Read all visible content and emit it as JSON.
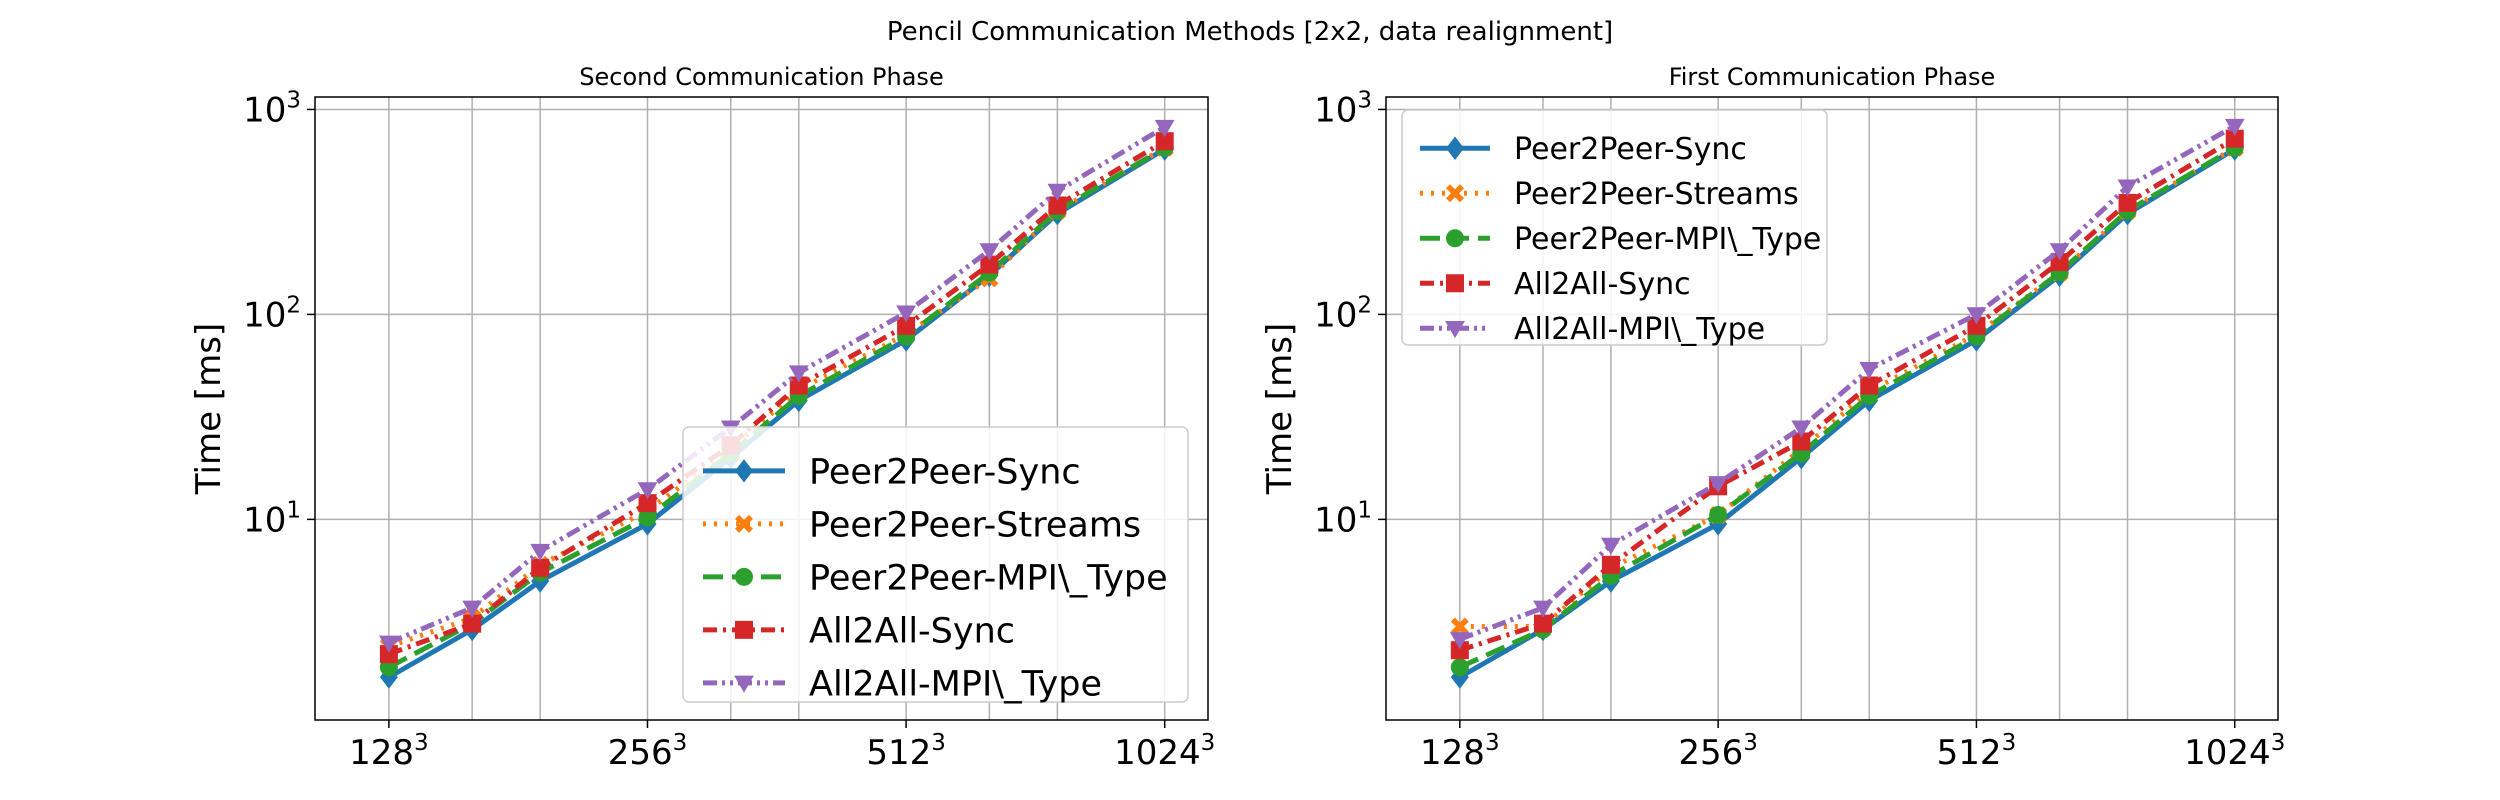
{
  "figure_title": "Pencil Communication Methods [2x2, data realignment]",
  "colors": {
    "Peer2Peer-Sync": "#1f77b4",
    "Peer2Peer-Streams": "#ff7f0e",
    "Peer2Peer-MPI\\_Type": "#2ca02c",
    "All2All-Sync": "#d62728",
    "All2All-MPI\\_Type": "#9467bd"
  },
  "chart_data": [
    {
      "type": "line",
      "title": "Second Communication Phase",
      "xlabel": "",
      "ylabel": "Time [ms]",
      "yscale": "log",
      "ylim": [
        1.05,
        1150
      ],
      "xlim": [
        105,
        1150
      ],
      "grid": true,
      "legend_position": "lower-right",
      "x": [
        128,
        160,
        192,
        256,
        320,
        384,
        512,
        640,
        768,
        1024
      ],
      "x_ticks": [
        {
          "value": 128,
          "base": "128",
          "exp": "3"
        },
        {
          "value": 256,
          "base": "256",
          "exp": "3"
        },
        {
          "value": 512,
          "base": "512",
          "exp": "3"
        },
        {
          "value": 1024,
          "base": "1024",
          "exp": "3"
        }
      ],
      "y_ticks": [
        {
          "value": 10,
          "base": "10",
          "exp": "1"
        },
        {
          "value": 100,
          "base": "10",
          "exp": "2"
        },
        {
          "value": 1000,
          "base": "10",
          "exp": "3"
        }
      ],
      "series": [
        {
          "name": "Peer2Peer-Sync",
          "values": [
            1.7,
            2.9,
            5.0,
            9.5,
            20,
            38,
            75,
            155,
            310,
            640
          ]
        },
        {
          "name": "Peer2Peer-Streams",
          "values": [
            2.4,
            3.3,
            6.0,
            11,
            22,
            43,
            80,
            150,
            320,
            650
          ]
        },
        {
          "name": "Peer2Peer-MPI\\_Type",
          "values": [
            1.9,
            3.1,
            5.5,
            10.2,
            21,
            40,
            78,
            160,
            320,
            650
          ]
        },
        {
          "name": "All2All-Sync",
          "values": [
            2.2,
            3.1,
            5.8,
            12,
            23,
            45,
            88,
            175,
            340,
            700
          ]
        },
        {
          "name": "All2All-MPI\\_Type",
          "values": [
            2.5,
            3.7,
            7.0,
            14,
            28,
            52,
            102,
            205,
            400,
            820
          ]
        }
      ]
    },
    {
      "type": "line",
      "title": "First Communication Phase",
      "xlabel": "",
      "ylabel": "Time [ms]",
      "yscale": "log",
      "ylim": [
        1.05,
        1150
      ],
      "xlim": [
        105,
        1150
      ],
      "grid": true,
      "legend_position": "upper-left",
      "x": [
        128,
        160,
        192,
        256,
        320,
        384,
        512,
        640,
        768,
        1024
      ],
      "x_ticks": [
        {
          "value": 128,
          "base": "128",
          "exp": "3"
        },
        {
          "value": 256,
          "base": "256",
          "exp": "3"
        },
        {
          "value": 512,
          "base": "512",
          "exp": "3"
        },
        {
          "value": 1024,
          "base": "1024",
          "exp": "3"
        }
      ],
      "y_ticks": [
        {
          "value": 10,
          "base": "10",
          "exp": "1"
        },
        {
          "value": 100,
          "base": "10",
          "exp": "2"
        },
        {
          "value": 1000,
          "base": "10",
          "exp": "3"
        }
      ],
      "series": [
        {
          "name": "Peer2Peer-Sync",
          "values": [
            1.7,
            2.9,
            5.0,
            9.5,
            20,
            38,
            75,
            155,
            310,
            640
          ]
        },
        {
          "name": "Peer2Peer-Streams",
          "values": [
            3.0,
            3.0,
            5.8,
            10.5,
            22,
            42,
            80,
            160,
            320,
            650
          ]
        },
        {
          "name": "Peer2Peer-MPI\\_Type",
          "values": [
            1.9,
            2.9,
            5.3,
            10.5,
            21,
            40,
            78,
            160,
            320,
            650
          ]
        },
        {
          "name": "All2All-Sync",
          "values": [
            2.3,
            3.1,
            6.0,
            14.5,
            24,
            45,
            88,
            180,
            350,
            720
          ]
        },
        {
          "name": "All2All-MPI\\_Type",
          "values": [
            2.6,
            3.7,
            7.5,
            15,
            28,
            54,
            100,
            205,
            420,
            830
          ]
        }
      ]
    }
  ]
}
